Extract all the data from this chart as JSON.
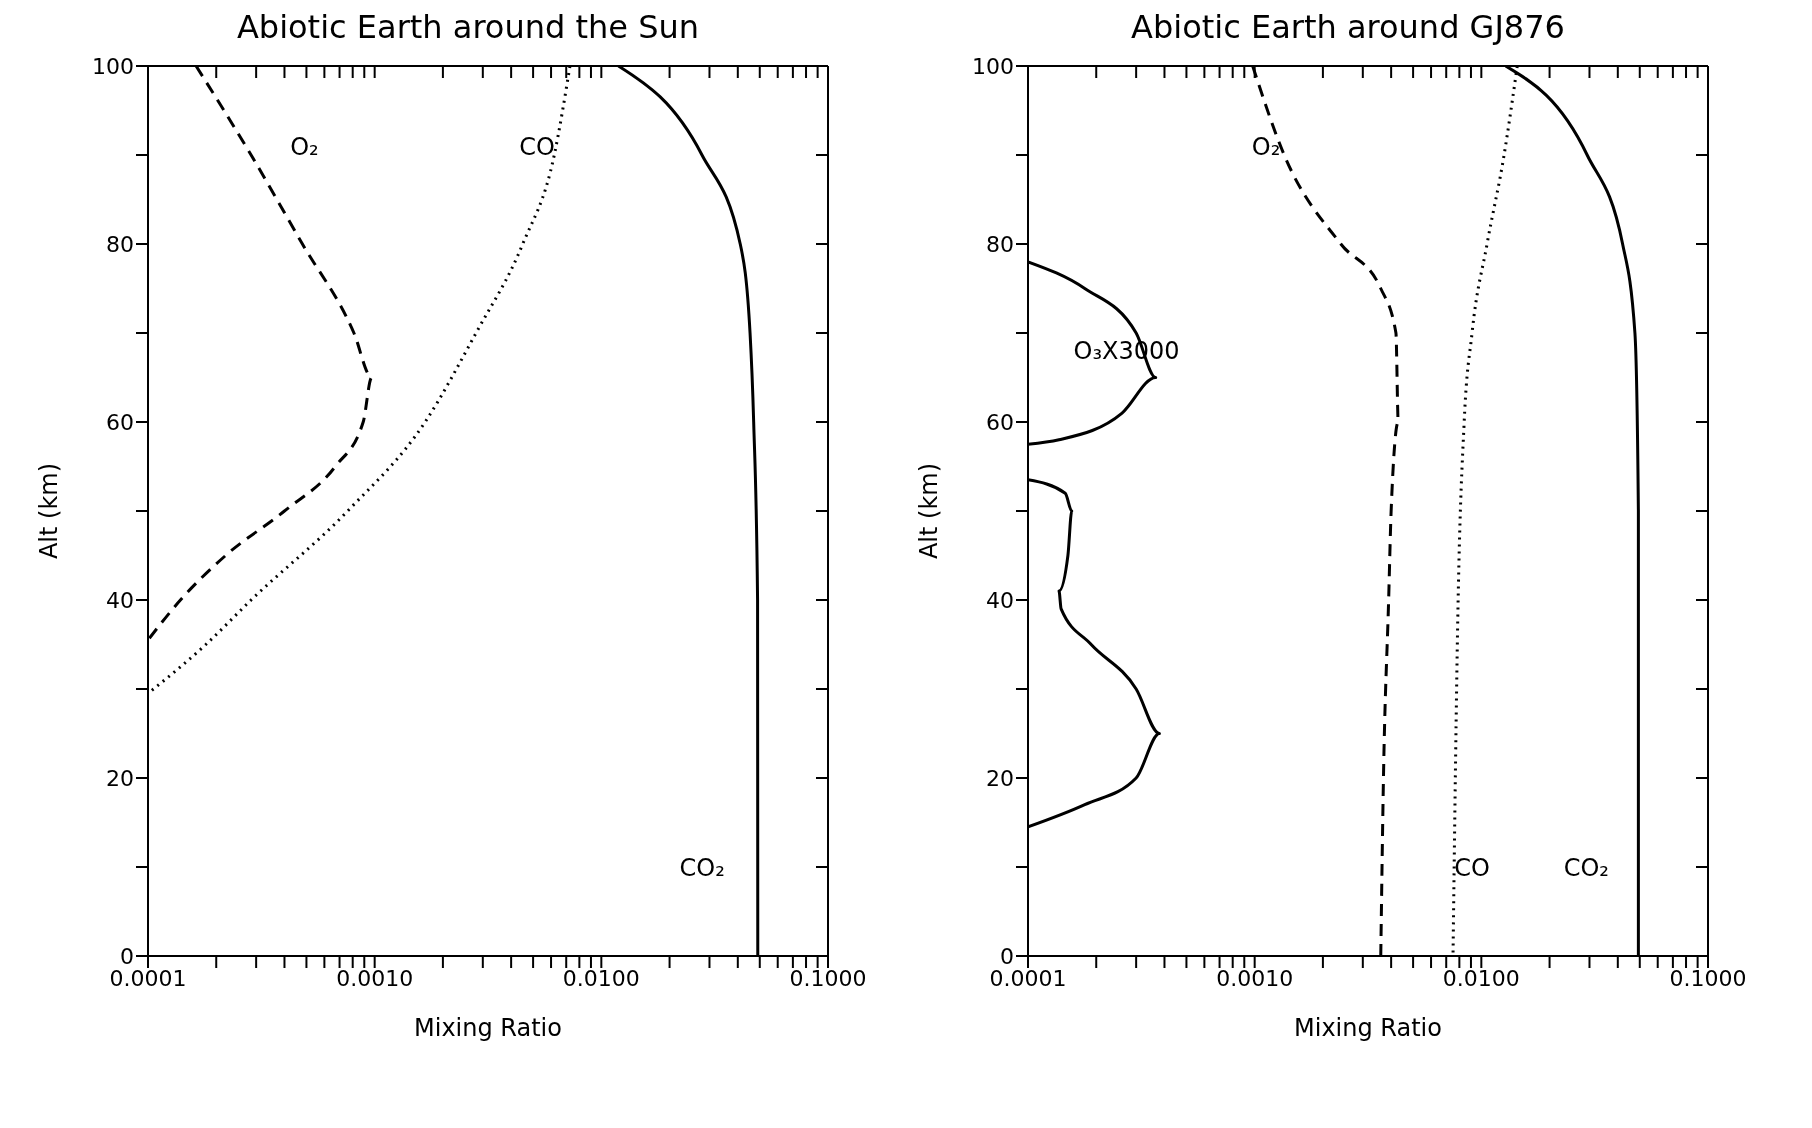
{
  "chart_data": [
    {
      "type": "line",
      "title": "Abiotic Earth around the Sun",
      "xlabel": "Mixing Ratio",
      "ylabel": "Alt (km)",
      "log": "x",
      "xlim": [
        0.0001,
        0.1
      ],
      "ylim": [
        0,
        100
      ],
      "xticks": [
        {
          "value": 0.0001,
          "label": "0.0001"
        },
        {
          "value": 0.0002,
          "label": null
        },
        {
          "value": 0.0003,
          "label": null
        },
        {
          "value": 0.0004,
          "label": null
        },
        {
          "value": 0.0005,
          "label": null
        },
        {
          "value": 0.0006,
          "label": null
        },
        {
          "value": 0.0007,
          "label": null
        },
        {
          "value": 0.0008,
          "label": null
        },
        {
          "value": 0.0009,
          "label": null
        },
        {
          "value": 0.001,
          "label": "0.0010"
        },
        {
          "value": 0.002,
          "label": null
        },
        {
          "value": 0.003,
          "label": null
        },
        {
          "value": 0.004,
          "label": null
        },
        {
          "value": 0.005,
          "label": null
        },
        {
          "value": 0.006,
          "label": null
        },
        {
          "value": 0.007,
          "label": null
        },
        {
          "value": 0.008,
          "label": null
        },
        {
          "value": 0.009,
          "label": null
        },
        {
          "value": 0.01,
          "label": "0.0100"
        },
        {
          "value": 0.02,
          "label": null
        },
        {
          "value": 0.03,
          "label": null
        },
        {
          "value": 0.04,
          "label": null
        },
        {
          "value": 0.05,
          "label": null
        },
        {
          "value": 0.06,
          "label": null
        },
        {
          "value": 0.07,
          "label": null
        },
        {
          "value": 0.08,
          "label": null
        },
        {
          "value": 0.09,
          "label": null
        },
        {
          "value": 0.1,
          "label": "0.1000"
        }
      ],
      "yticks": [
        0,
        {
          "value": 10,
          "label": null
        },
        20,
        {
          "value": 30,
          "label": null
        },
        40,
        {
          "value": 50,
          "label": null
        },
        60,
        {
          "value": 70,
          "label": null
        },
        80,
        {
          "value": 90,
          "label": null
        },
        100
      ],
      "legend": false,
      "marker": "none",
      "series": [
        {
          "name": "CO₂",
          "color": "#000000",
          "line_style": "solid",
          "x": [
            0.0119,
            0.0278,
            0.041,
            0.0453,
            0.047,
            0.0489,
            0.049
          ],
          "values": [
            100,
            90,
            80,
            70,
            60,
            40,
            0
          ]
        },
        {
          "name": "O₂",
          "color": "#000000",
          "line_style": "dashed",
          "x": [
            0.000163,
            0.000285,
            0.00048,
            0.00081,
            0.00097,
            0.00089,
            0.00067,
            0.0004,
            0.00022,
            0.000139,
            0.0001
          ],
          "values": [
            100,
            90,
            80,
            70,
            65,
            60,
            55,
            50,
            45,
            40,
            35.5
          ]
        },
        {
          "name": "CO",
          "color": "#000000",
          "line_style": "dotted",
          "x": [
            0.00727,
            0.0062,
            0.0045,
            0.0028,
            0.00167,
            0.00076,
            0.000285,
            0.00018,
            0.0001
          ],
          "values": [
            100,
            90,
            80,
            70,
            60,
            50,
            40,
            35,
            29.5
          ]
        }
      ]
    },
    {
      "type": "line",
      "title": "Abiotic Earth around GJ876",
      "xlabel": "Mixing Ratio",
      "ylabel": "Alt (km)",
      "log": "x",
      "xlim": [
        0.0001,
        0.1
      ],
      "ylim": [
        0,
        100
      ],
      "xticks": [
        {
          "value": 0.0001,
          "label": "0.0001"
        },
        {
          "value": 0.0002,
          "label": null
        },
        {
          "value": 0.0003,
          "label": null
        },
        {
          "value": 0.0004,
          "label": null
        },
        {
          "value": 0.0005,
          "label": null
        },
        {
          "value": 0.0006,
          "label": null
        },
        {
          "value": 0.0007,
          "label": null
        },
        {
          "value": 0.0008,
          "label": null
        },
        {
          "value": 0.0009,
          "label": null
        },
        {
          "value": 0.001,
          "label": "0.0010"
        },
        {
          "value": 0.002,
          "label": null
        },
        {
          "value": 0.003,
          "label": null
        },
        {
          "value": 0.004,
          "label": null
        },
        {
          "value": 0.005,
          "label": null
        },
        {
          "value": 0.006,
          "label": null
        },
        {
          "value": 0.007,
          "label": null
        },
        {
          "value": 0.008,
          "label": null
        },
        {
          "value": 0.009,
          "label": null
        },
        {
          "value": 0.01,
          "label": "0.0100"
        },
        {
          "value": 0.02,
          "label": null
        },
        {
          "value": 0.03,
          "label": null
        },
        {
          "value": 0.04,
          "label": null
        },
        {
          "value": 0.05,
          "label": null
        },
        {
          "value": 0.06,
          "label": null
        },
        {
          "value": 0.07,
          "label": null
        },
        {
          "value": 0.08,
          "label": null
        },
        {
          "value": 0.09,
          "label": null
        },
        {
          "value": 0.1,
          "label": "0.1000"
        }
      ],
      "yticks": [
        0,
        {
          "value": 10,
          "label": null
        },
        20,
        {
          "value": 30,
          "label": null
        },
        40,
        {
          "value": 50,
          "label": null
        },
        60,
        {
          "value": 70,
          "label": null
        },
        80,
        {
          "value": 90,
          "label": null
        },
        100
      ],
      "legend": false,
      "marker": "none",
      "series": [
        {
          "name": "CO₂",
          "color": "#000000",
          "line_style": "solid",
          "x": [
            0.0128,
            0.0293,
            0.042,
            0.0476,
            0.0493,
            0.0493
          ],
          "values": [
            100,
            90,
            80,
            70,
            50,
            0
          ]
        },
        {
          "name": "O₂",
          "color": "#000000",
          "line_style": "dashed",
          "x": [
            0.00098,
            0.00135,
            0.0024,
            0.0036,
            0.0042,
            0.0043,
            0.004,
            0.0039,
            0.0037,
            0.0036
          ],
          "values": [
            100,
            90,
            80,
            75,
            70,
            60,
            50,
            40,
            20,
            0
          ]
        },
        {
          "name": "CO",
          "color": "#000000",
          "line_style": "dotted",
          "x": [
            0.0144,
            0.0126,
            0.0106,
            0.0091,
            0.0084,
            0.0079,
            0.0075
          ],
          "values": [
            100,
            90,
            80,
            70,
            60,
            40,
            0
          ]
        },
        {
          "name": "O₃X3000",
          "color": "#000000",
          "line_style": "solid",
          "x": [
            0.0001,
            0.000178,
            0.0003,
            0.000366,
            0.00026,
            0.000137,
            0.0001,
            null,
            0.0001,
            0.000146,
            0.000156,
            0.00015,
            0.000137,
            0.00014,
            0.00019,
            0.0003,
            0.00038,
            0.0003,
            0.000178,
            0.0001
          ],
          "values": [
            78,
            75,
            70,
            65,
            61,
            58,
            57.5,
            null,
            53.5,
            52,
            50,
            45,
            41,
            39,
            35,
            30,
            25,
            20,
            17,
            14.5
          ]
        }
      ]
    }
  ]
}
